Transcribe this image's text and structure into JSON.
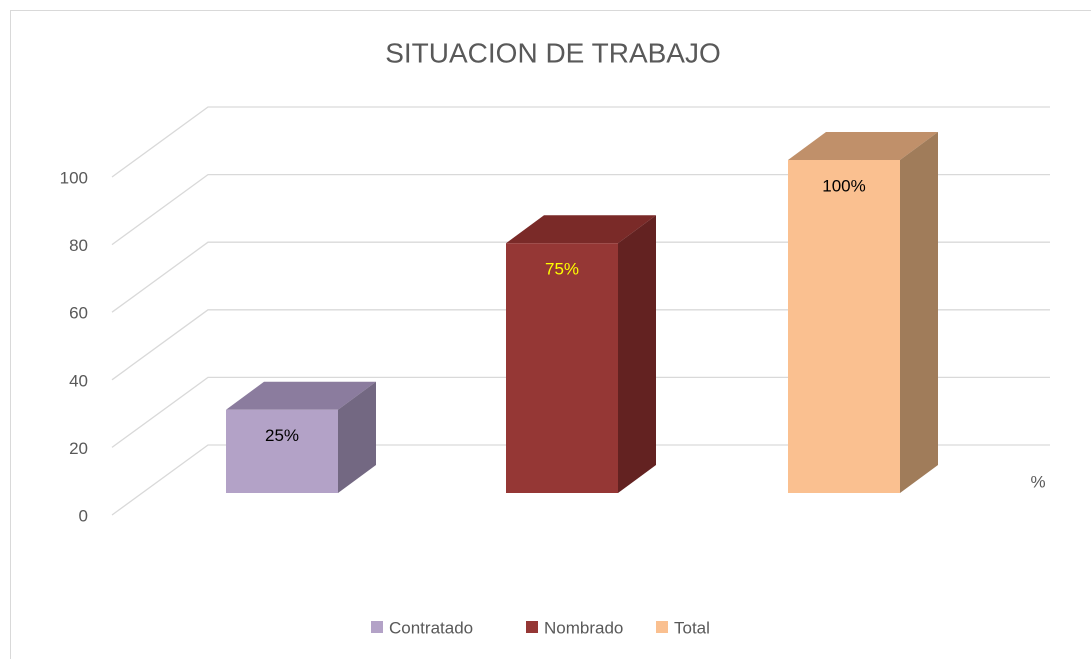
{
  "chart_data": {
    "type": "bar3d",
    "title": "SITUACION DE TRABAJO",
    "categories": [
      "%"
    ],
    "series": [
      {
        "name": "Contratado",
        "color": "#b3a2c7",
        "top_color": "#8b7c9e",
        "side_color": "#736882",
        "label_color": "#000000",
        "values": [
          25
        ],
        "value_labels": [
          "25%"
        ]
      },
      {
        "name": "Nombrado",
        "color": "#953735",
        "top_color": "#7a2a28",
        "side_color": "#632221",
        "label_color": "#ffff00",
        "values": [
          75
        ],
        "value_labels": [
          "75%"
        ]
      },
      {
        "name": "Total",
        "color": "#fac090",
        "top_color": "#c0906a",
        "side_color": "#a07c5a",
        "label_color": "#000000",
        "values": [
          100
        ],
        "value_labels": [
          "100%"
        ]
      }
    ],
    "ylim": [
      0,
      100
    ],
    "yticks": [
      0,
      20,
      40,
      60,
      80,
      100
    ],
    "grid": true,
    "legend": "bottom"
  }
}
